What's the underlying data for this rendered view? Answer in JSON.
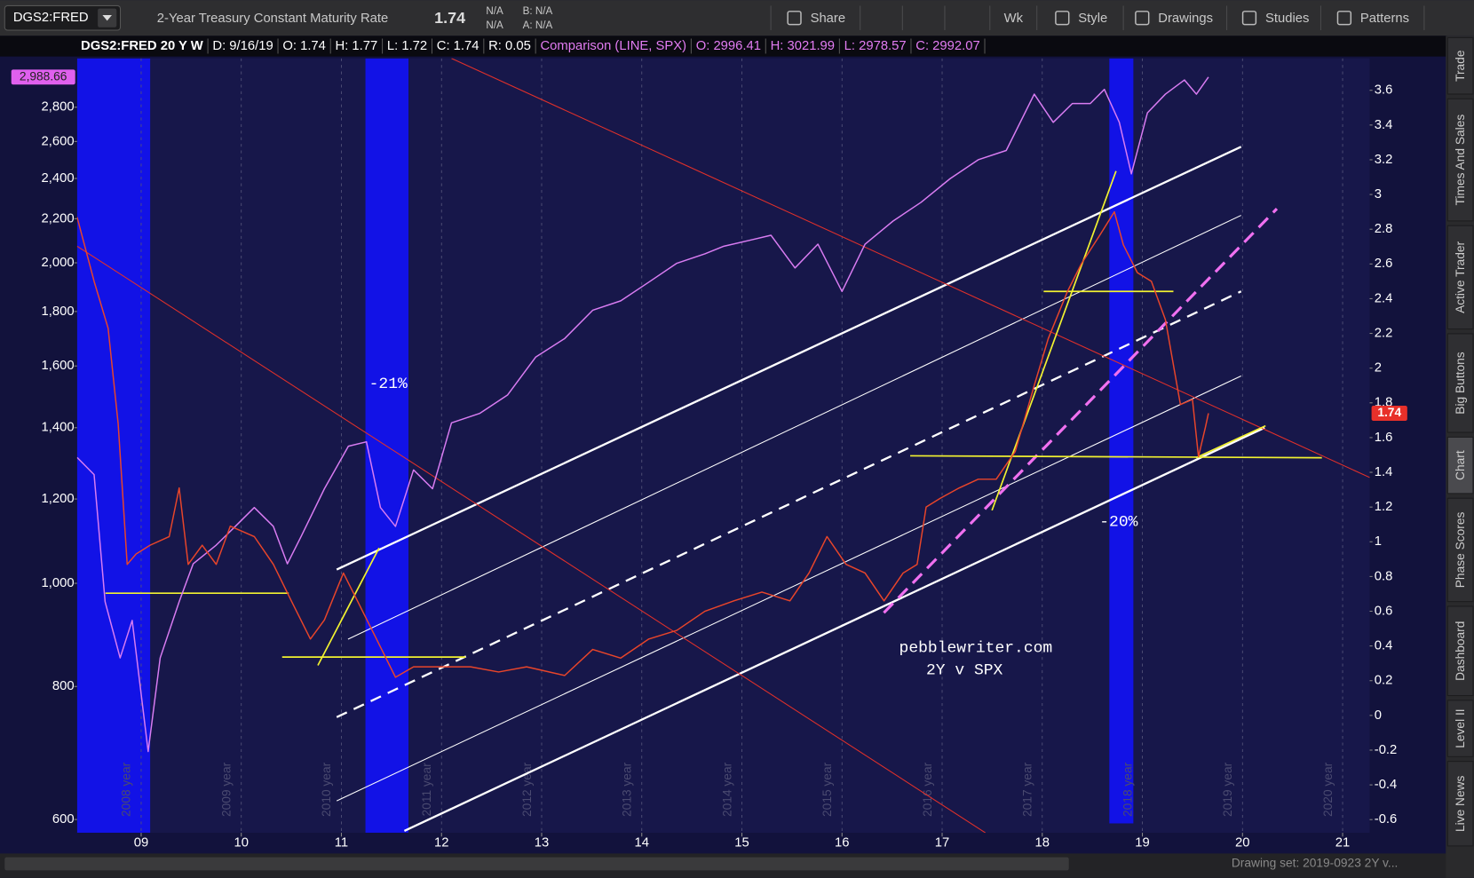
{
  "toolbar": {
    "symbol": "DGS2:FRED",
    "description": "2-Year Treasury Constant Maturity Rate",
    "last": "1.74",
    "change": [
      "N/A",
      "N/A"
    ],
    "bid": "B: N/A",
    "ask": "A: N/A",
    "buttons": [
      "Share",
      "Wk",
      "Style",
      "Drawings",
      "Studies",
      "Patterns"
    ]
  },
  "header": {
    "study": "DGS2:FRED 20 Y W",
    "items": [
      "D: 9/16/19",
      "O: 1.74",
      "H: 1.77",
      "L: 1.72",
      "C: 1.74",
      "R: 0.05"
    ],
    "comparison": "Comparison (LINE, SPX)",
    "comparison_items": [
      "O: 2996.41",
      "H: 3021.99",
      "L: 2978.57",
      "C: 2992.07"
    ]
  },
  "side_tabs": [
    "Trade",
    "Times And Sales",
    "Active Trader",
    "Big Buttons",
    "Chart",
    "Phase Scores",
    "Dashboard",
    "Level II",
    "Live News"
  ],
  "active_tab_index": 4,
  "footer": {
    "drawing_set": "Drawing set: 2019-0923 2Y v..."
  },
  "chart_data": {
    "type": "line",
    "log_scale": true,
    "grid": true,
    "xlim": [
      2008.36,
      2021.27
    ],
    "xticks": [
      {
        "value": 2009,
        "label": "09"
      },
      {
        "value": 2010,
        "label": "10"
      },
      {
        "value": 2011,
        "label": "11"
      },
      {
        "value": 2012,
        "label": "12"
      },
      {
        "value": 2013,
        "label": "13"
      },
      {
        "value": 2014,
        "label": "14"
      },
      {
        "value": 2015,
        "label": "15"
      },
      {
        "value": 2016,
        "label": "16"
      },
      {
        "value": 2017,
        "label": "17"
      },
      {
        "value": 2018,
        "label": "18"
      },
      {
        "value": 2019,
        "label": "19"
      },
      {
        "value": 2020,
        "label": "20"
      },
      {
        "value": 2021,
        "label": "21"
      }
    ],
    "year_labels": [
      "2008 year",
      "2009 year",
      "2010 year",
      "2011 year",
      "2012 year",
      "2013 year",
      "2014 year",
      "2015 year",
      "2016 year",
      "2017 year",
      "2018 year",
      "2019 year",
      "2020 year"
    ],
    "ylim": [
      583,
      3112
    ],
    "yticks": [
      600,
      800,
      {
        "value": 1000,
        "label": "1,000"
      },
      {
        "value": 1200,
        "label": "1,200"
      },
      {
        "value": 1400,
        "label": "1,400"
      },
      {
        "value": 1600,
        "label": "1,600"
      },
      {
        "value": 1800,
        "label": "1,800"
      },
      {
        "value": 2000,
        "label": "2,000"
      },
      {
        "value": 2200,
        "label": "2,200"
      },
      {
        "value": 2400,
        "label": "2,400"
      },
      {
        "value": 2600,
        "label": "2,600"
      },
      {
        "value": 2800,
        "label": "2,800"
      }
    ],
    "y2lim": [
      -0.676,
      3.784
    ],
    "y2ticks": [
      -0.6,
      -0.4,
      -0.2,
      0,
      0.2,
      0.4,
      0.6,
      0.8,
      1,
      1.2,
      1.4,
      1.6,
      1.8,
      2,
      2.2,
      2.4,
      2.6,
      2.8,
      3,
      3.2,
      3.4,
      3.6
    ],
    "series": [
      {
        "color": "#d97cf2",
        "axis": "y",
        "x": [
          2008.36,
          2008.53,
          2008.64,
          2008.79,
          2008.91,
          2009.07,
          2009.19,
          2009.38,
          2009.52,
          2009.75,
          2009.94,
          2010.13,
          2010.32,
          2010.46,
          2010.6,
          2010.83,
          2011.07,
          2011.25,
          2011.39,
          2011.54,
          2011.72,
          2011.91,
          2012.1,
          2012.38,
          2012.66,
          2012.94,
          2013.23,
          2013.51,
          2013.79,
          2014.07,
          2014.35,
          2014.63,
          2014.82,
          2015.1,
          2015.29,
          2015.53,
          2015.76,
          2016.0,
          2016.23,
          2016.51,
          2016.79,
          2017.08,
          2017.36,
          2017.64,
          2017.92,
          2018.11,
          2018.3,
          2018.48,
          2018.62,
          2018.77,
          2018.89,
          2019.05,
          2019.23,
          2019.42,
          2019.54,
          2019.66
        ],
        "values": [
          1313,
          1265,
          961,
          851,
          923,
          695,
          851,
          961,
          1043,
          1086,
          1131,
          1178,
          1131,
          1043,
          1108,
          1227,
          1345,
          1358,
          1178,
          1131,
          1278,
          1227,
          1415,
          1444,
          1503,
          1631,
          1698,
          1805,
          1842,
          1918,
          1998,
          2039,
          2073,
          2102,
          2123,
          1978,
          2082,
          1880,
          2082,
          2189,
          2280,
          2399,
          2499,
          2550,
          2880,
          2710,
          2822,
          2822,
          2910,
          2710,
          2424,
          2766,
          2880,
          2970,
          2880,
          2988.66
        ]
      },
      {
        "color": "#e8452a",
        "axis": "y2",
        "x": [
          2008.36,
          2008.53,
          2008.67,
          2008.77,
          2008.86,
          2008.95,
          2009.09,
          2009.28,
          2009.38,
          2009.47,
          2009.61,
          2009.75,
          2009.89,
          2010.13,
          2010.32,
          2010.5,
          2010.69,
          2010.83,
          2011.02,
          2011.16,
          2011.35,
          2011.54,
          2011.72,
          2012.0,
          2012.29,
          2012.57,
          2012.85,
          2013.23,
          2013.51,
          2013.79,
          2014.07,
          2014.35,
          2014.63,
          2014.92,
          2015.2,
          2015.48,
          2015.67,
          2015.85,
          2016.04,
          2016.23,
          2016.42,
          2016.61,
          2016.75,
          2016.84,
          2016.98,
          2017.17,
          2017.36,
          2017.54,
          2017.73,
          2017.92,
          2018.06,
          2018.25,
          2018.39,
          2018.58,
          2018.72,
          2018.81,
          2018.95,
          2019.09,
          2019.23,
          2019.38,
          2019.5,
          2019.56,
          2019.63,
          2019.66
        ],
        "values": [
          2.87,
          2.5,
          2.23,
          1.68,
          0.87,
          0.93,
          0.98,
          1.03,
          1.31,
          0.87,
          0.98,
          0.87,
          1.09,
          1.03,
          0.87,
          0.66,
          0.44,
          0.55,
          0.82,
          0.66,
          0.44,
          0.22,
          0.28,
          0.28,
          0.28,
          0.25,
          0.28,
          0.23,
          0.38,
          0.33,
          0.44,
          0.49,
          0.6,
          0.66,
          0.71,
          0.66,
          0.82,
          1.03,
          0.87,
          0.82,
          0.66,
          0.82,
          0.87,
          1.2,
          1.25,
          1.31,
          1.36,
          1.36,
          1.52,
          1.9,
          2.17,
          2.44,
          2.6,
          2.77,
          2.9,
          2.71,
          2.55,
          2.5,
          2.28,
          1.79,
          1.82,
          1.49,
          1.66,
          1.74
        ]
      }
    ],
    "last_labels": {
      "y": {
        "value": 2988.66,
        "label": "2,988.66"
      },
      "y2": 1.74
    },
    "shaded": [
      [
        2008.36,
        2009.09
      ],
      [
        2011.24,
        2011.67
      ],
      [
        2018.67,
        2018.91
      ]
    ],
    "drawings": [
      {
        "color": "#ffffff",
        "width": 2.2,
        "dash": false,
        "x": [
          2010.953,
          2019.986
        ],
        "y": [
          0.84,
          3.275
        ]
      },
      {
        "color": "#ffffff",
        "width": 2.2,
        "dash": false,
        "x": [
          2011.629,
          2020.221
        ],
        "y": [
          -0.665,
          1.657
        ]
      },
      {
        "color": "#ffffff",
        "width": 1,
        "dash": false,
        "x": [
          2011.066,
          2019.986
        ],
        "y": [
          0.439,
          2.88
        ]
      },
      {
        "color": "#ffffff",
        "width": 1,
        "dash": false,
        "x": [
          2010.953,
          2019.986
        ],
        "y": [
          -0.492,
          1.955
        ]
      },
      {
        "color": "#ffffff",
        "width": 2.2,
        "dash": true,
        "x": [
          2010.953,
          2019.986
        ],
        "y": [
          -0.01,
          2.442
        ]
      },
      {
        "color": "#f070f0",
        "width": 3,
        "dash": true,
        "x": [
          2016.418,
          2020.343
        ],
        "y": [
          0.591,
          2.918
        ]
      },
      {
        "color": "#e0302a",
        "width": 1,
        "dash": false,
        "x": [
          2008.361,
          2017.432
        ],
        "y": [
          2.702,
          -0.676
        ]
      },
      {
        "color": "#e0302a",
        "width": 1,
        "dash": false,
        "x": [
          2012.099,
          2021.272
        ],
        "y": [
          3.784,
          1.37
        ]
      },
      {
        "color": "#f2f230",
        "width": 1.6,
        "dash": false,
        "x": [
          2008.643,
          2010.474
        ],
        "y": [
          0.704,
          0.704
        ]
      },
      {
        "color": "#f2f230",
        "width": 1.6,
        "dash": false,
        "x": [
          2010.408,
          2012.239
        ],
        "y": [
          0.336,
          0.336
        ]
      },
      {
        "color": "#f2f230",
        "width": 1.6,
        "dash": false,
        "x": [
          2018.014,
          2019.31
        ],
        "y": [
          2.442,
          2.442
        ]
      },
      {
        "color": "#f2f230",
        "width": 1.6,
        "dash": false,
        "x": [
          2016.681,
          2020.793
        ],
        "y": [
          1.495,
          1.484
        ]
      },
      {
        "color": "#f2f230",
        "width": 1.6,
        "dash": false,
        "x": [
          2010.765,
          2011.376
        ],
        "y": [
          0.288,
          0.964
        ]
      },
      {
        "color": "#f2f230",
        "width": 1.6,
        "dash": false,
        "x": [
          2017.498,
          2018.737
        ],
        "y": [
          1.181,
          3.135
        ]
      },
      {
        "color": "#f2f230",
        "width": 1.6,
        "dash": false,
        "x": [
          2019.535,
          2020.23
        ],
        "y": [
          1.484,
          1.668
        ]
      }
    ],
    "annotations": [
      "-21%",
      "-20%",
      "pebblewriter.com",
      "2Y v SPX"
    ]
  }
}
